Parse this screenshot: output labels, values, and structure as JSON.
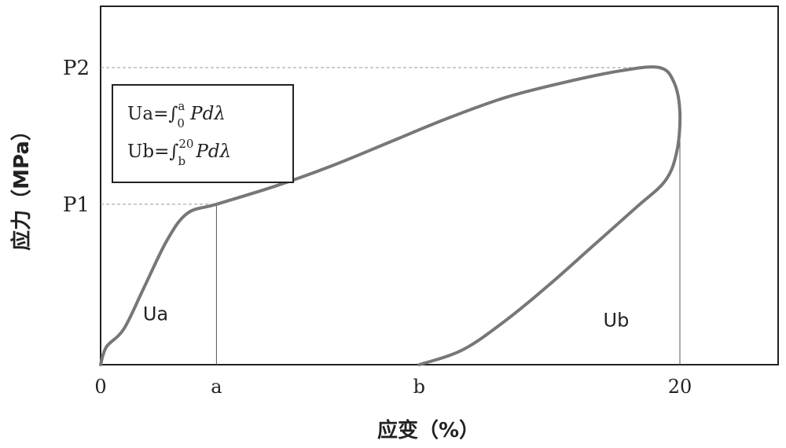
{
  "chart_data": {
    "type": "line",
    "xlabel": "应变（%）",
    "ylabel": "应力（MPa）",
    "x_ticks": [
      {
        "value": 0,
        "label": "0"
      },
      {
        "value": 4,
        "label": "a"
      },
      {
        "value": 11,
        "label": "b"
      },
      {
        "value": 20,
        "label": "20"
      }
    ],
    "y_ticks": [
      {
        "value": 0.54,
        "label": "P1"
      },
      {
        "value": 1.0,
        "label": "P2"
      }
    ],
    "xlim": [
      0,
      23
    ],
    "ylim": [
      0,
      1.22
    ],
    "series": [
      {
        "points": [
          [
            0,
            0
          ],
          [
            0.2,
            0.06
          ],
          [
            0.8,
            0.12
          ],
          [
            1.5,
            0.26
          ],
          [
            2.3,
            0.42
          ],
          [
            3.0,
            0.51
          ],
          [
            4.0,
            0.54
          ],
          [
            6.0,
            0.6
          ],
          [
            8.0,
            0.67
          ],
          [
            10.0,
            0.75
          ],
          [
            12.0,
            0.83
          ],
          [
            14.0,
            0.9
          ],
          [
            16.0,
            0.95
          ],
          [
            18.0,
            0.99
          ],
          [
            19.3,
            1.0
          ],
          [
            19.8,
            0.95
          ],
          [
            20.0,
            0.85
          ],
          [
            19.9,
            0.72
          ],
          [
            19.5,
            0.62
          ],
          [
            18.5,
            0.53
          ],
          [
            17.0,
            0.4
          ],
          [
            15.5,
            0.27
          ],
          [
            14.0,
            0.15
          ],
          [
            12.5,
            0.05
          ],
          [
            11.0,
            0.0
          ]
        ]
      }
    ],
    "guides": {
      "p1_x": 4,
      "p1_y": 0.54,
      "p2_x": 19.3,
      "p2_y": 1.0,
      "x20": 20
    },
    "regions": [
      {
        "label": "Ua",
        "x": 1.9,
        "y": 0.17
      },
      {
        "label": "Ub",
        "x": 17.8,
        "y": 0.15
      }
    ],
    "legend": {
      "line1": {
        "prefix": "Ua=∫",
        "sub": "0",
        "sup": "a",
        "body": " Pdλ"
      },
      "line2": {
        "prefix": "Ub=∫",
        "sub": "b",
        "sup": "20",
        "body": " Pdλ"
      }
    }
  }
}
